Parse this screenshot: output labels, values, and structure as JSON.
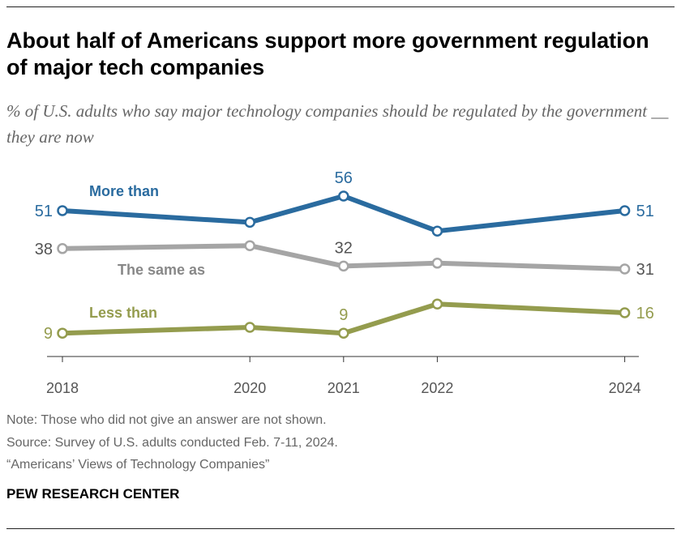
{
  "title": "About half of Americans support more government regulation of major tech companies",
  "subtitle": "% of U.S. adults who say major technology companies should be regulated by the government __ they are now",
  "notes": {
    "note": "Note: Those who did not give an answer are not shown.",
    "source": "Source: Survey of U.S. adults conducted Feb. 7-11, 2024.",
    "report": "“Americans’ Views of Technology Companies”"
  },
  "brand": "PEW RESEARCH CENTER",
  "chart_data": {
    "type": "line",
    "x": [
      2018,
      2020,
      2021,
      2022,
      2024
    ],
    "x_tick_labels": [
      "2018",
      "2020",
      "2021",
      "2022",
      "2024"
    ],
    "series": [
      {
        "name": "More than",
        "color": "#2a6b9f",
        "values": [
          51,
          47,
          56,
          44,
          51
        ],
        "labeled": [
          51,
          null,
          56,
          null,
          51
        ]
      },
      {
        "name": "The same as",
        "color": "#a5a5a5",
        "values": [
          38,
          39,
          32,
          33,
          31
        ],
        "labeled": [
          38,
          null,
          32,
          null,
          31
        ]
      },
      {
        "name": "Less than",
        "color": "#949c4e",
        "values": [
          9,
          11,
          9,
          19,
          16
        ],
        "labeled": [
          9,
          null,
          9,
          null,
          16
        ]
      }
    ],
    "grid": false,
    "legend": "inline labels"
  }
}
